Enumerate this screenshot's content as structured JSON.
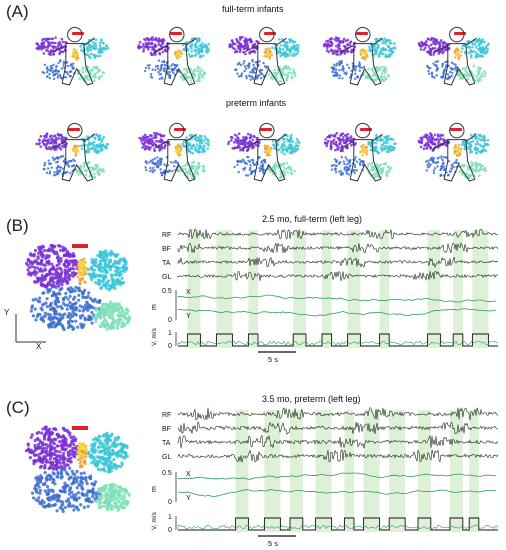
{
  "panel_a": {
    "label": "(A)",
    "row1_caption": "full-term infants",
    "row2_caption": "preterm infants"
  },
  "panel_b": {
    "label": "(B)",
    "title": "2.5 mo, full-term (left leg)",
    "emg_channels": [
      "RF",
      "BF",
      "TA",
      "GL"
    ],
    "m_axis_label": "m",
    "m_ticks": [
      "0.5",
      "0"
    ],
    "x_trace_label": "X",
    "y_trace_label": "Y",
    "v_axis_label": "V, m/s",
    "v_ticks": [
      "1",
      "0"
    ],
    "scalebar_label": "5 s",
    "xy_axis_y": "Y",
    "xy_axis_x": "X"
  },
  "panel_c": {
    "label": "(C)",
    "title": "3.5 mo, preterm (left leg)",
    "emg_channels": [
      "RF",
      "BF",
      "TA",
      "GL"
    ],
    "m_axis_label": "m",
    "m_ticks": [
      "0.5",
      "0"
    ],
    "x_trace_label": "X",
    "y_trace_label": "Y",
    "v_axis_label": "V, m/s",
    "v_ticks": [
      "1",
      "0"
    ],
    "scalebar_label": "5 s"
  },
  "colors": {
    "purple": "#7a2fd6",
    "blue": "#3d6fd0",
    "cyan": "#39c6d9",
    "mint": "#7fe0b8",
    "red": "#e0202a",
    "orange": "#f0a030",
    "yellow": "#f2d640",
    "band": "#dff0d8",
    "trace_green": "#2e9e55",
    "emg": "#1a2a1a"
  }
}
